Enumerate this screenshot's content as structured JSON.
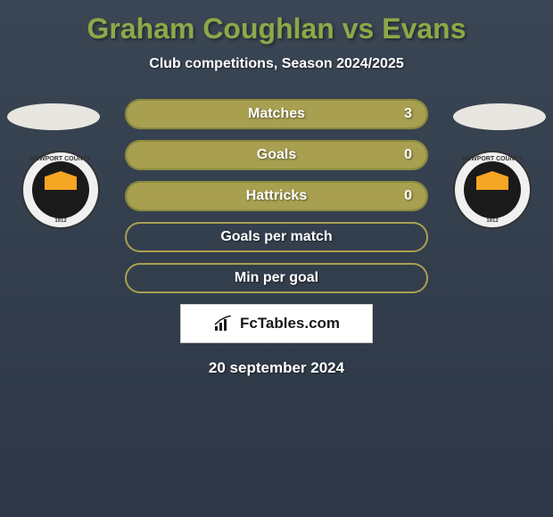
{
  "title": "Graham Coughlan vs Evans",
  "subtitle": "Club competitions, Season 2024/2025",
  "colors": {
    "bg_top": "#3a4654",
    "bg_bottom": "#2d3745",
    "accent": "#8da848",
    "bar_fill": "#a8a050",
    "bar_border": "#8b8a3e",
    "text": "#ffffff"
  },
  "player_left": {
    "name": "Graham Coughlan",
    "club_name": "Newport County AFC",
    "club_year": "1912"
  },
  "player_right": {
    "name": "Evans",
    "club_name": "Newport County AFC",
    "club_year": "1912"
  },
  "stats": [
    {
      "label": "Matches",
      "left_value": "",
      "right_value": "3",
      "left_pct": 0,
      "right_pct": 100,
      "show_values": true
    },
    {
      "label": "Goals",
      "left_value": "",
      "right_value": "0",
      "left_pct": 0,
      "right_pct": 100,
      "show_values": true
    },
    {
      "label": "Hattricks",
      "left_value": "",
      "right_value": "0",
      "left_pct": 0,
      "right_pct": 100,
      "show_values": true
    },
    {
      "label": "Goals per match",
      "left_value": "",
      "right_value": "",
      "left_pct": 0,
      "right_pct": 0,
      "show_values": false
    },
    {
      "label": "Min per goal",
      "left_value": "",
      "right_value": "",
      "left_pct": 0,
      "right_pct": 0,
      "show_values": false
    }
  ],
  "watermark": "FcTables.com",
  "date": "20 september 2024"
}
